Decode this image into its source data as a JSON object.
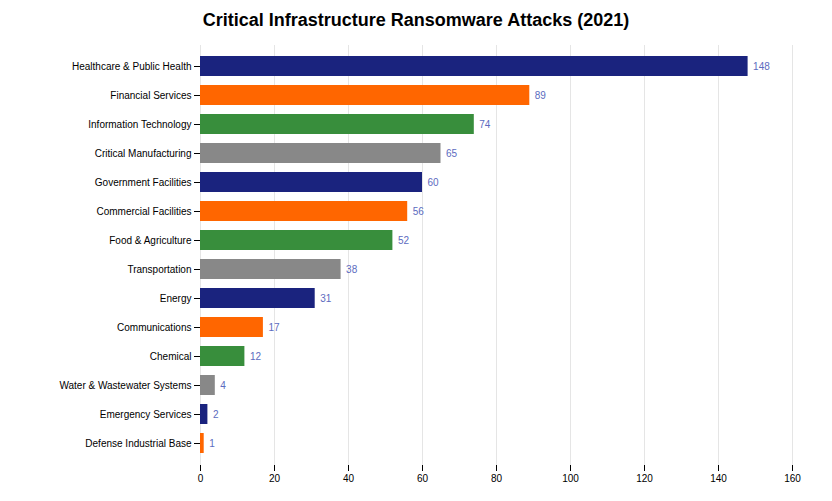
{
  "chart_data": {
    "type": "bar",
    "orientation": "horizontal",
    "title": "Critical Infrastructure Ransomware Attacks (2021)",
    "categories": [
      "Healthcare & Public Health",
      "Financial Services",
      "Information Technology",
      "Critical Manufacturing",
      "Government Facilities",
      "Commercial Facilities",
      "Food & Agriculture",
      "Transportation",
      "Energy",
      "Communications",
      "Chemical",
      "Water & Wastewater Systems",
      "Emergency Services",
      "Defense Industrial Base"
    ],
    "values": [
      148,
      89,
      74,
      65,
      60,
      56,
      52,
      38,
      31,
      17,
      12,
      4,
      2,
      1
    ],
    "colors": [
      "#1a237e",
      "#FF6600",
      "#388E3C",
      "#888888",
      "#1a237e",
      "#FF6600",
      "#388E3C",
      "#888888",
      "#1a237e",
      "#FF6600",
      "#388E3C",
      "#888888",
      "#1a237e",
      "#FF6600"
    ],
    "xlim": [
      0,
      160
    ],
    "xticks": [
      0,
      20,
      40,
      60,
      80,
      100,
      120,
      140,
      160
    ],
    "grid": true,
    "data_labels": true
  }
}
